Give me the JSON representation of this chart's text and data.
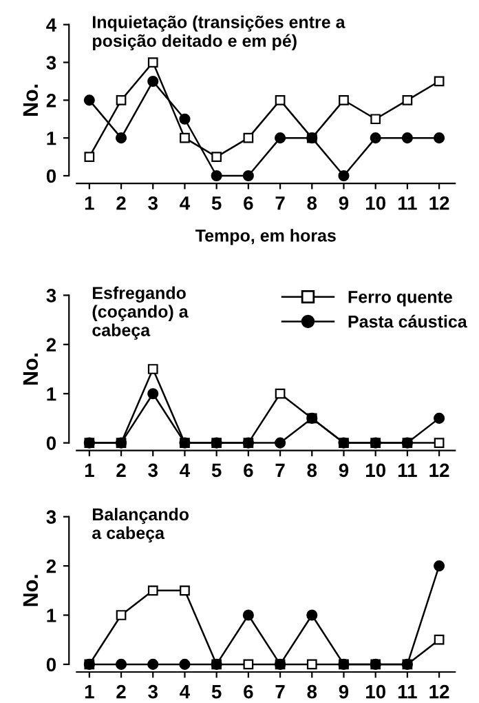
{
  "chart_data": [
    {
      "type": "line",
      "title": "Inquietação (transições entre a\nposição deitado e em pé)",
      "xlabel": "Tempo, em horas",
      "ylabel": "No.",
      "x": [
        1,
        2,
        3,
        4,
        5,
        6,
        7,
        8,
        9,
        10,
        11,
        12
      ],
      "xlim": [
        0.6,
        12.5
      ],
      "xticks": [
        1,
        2,
        3,
        4,
        5,
        6,
        7,
        8,
        9,
        10,
        11,
        12
      ],
      "ylim": [
        0,
        4
      ],
      "yticks": [
        0,
        1,
        2,
        3,
        4
      ],
      "grid": false,
      "legend": false,
      "series": [
        {
          "color": "#000000",
          "marker": "square",
          "values": [
            0.5,
            2,
            3,
            1,
            0.5,
            1,
            2,
            1,
            2,
            1.5,
            2,
            2.5
          ]
        },
        {
          "color": "#000000",
          "marker": "circle",
          "values": [
            2,
            1,
            2.5,
            1.5,
            0,
            0,
            1,
            1,
            0,
            1,
            1,
            1
          ]
        }
      ]
    },
    {
      "type": "line",
      "title": "Esfregando\n(coçando) a\ncabeça",
      "ylabel": "No.",
      "x": [
        1,
        2,
        3,
        4,
        5,
        6,
        7,
        8,
        9,
        10,
        11,
        12
      ],
      "xlim": [
        0.6,
        12.5
      ],
      "xticks": [
        1,
        2,
        3,
        4,
        5,
        6,
        7,
        8,
        9,
        10,
        11,
        12
      ],
      "ylim": [
        0,
        3
      ],
      "yticks": [
        0,
        1,
        2,
        3
      ],
      "grid": false,
      "legend": "top right",
      "series": [
        {
          "name": "Ferro quente",
          "color": "#000000",
          "marker": "square",
          "values": [
            0,
            0,
            1.5,
            0,
            0,
            0,
            1,
            0.5,
            0,
            0,
            0,
            0
          ]
        },
        {
          "name": "Pasta cáustica",
          "color": "#000000",
          "marker": "circle",
          "values": [
            0,
            0,
            1,
            0,
            0,
            0,
            0,
            0.5,
            0,
            0,
            0,
            0.5
          ]
        }
      ]
    },
    {
      "type": "line",
      "title": "Balançando\na cabeça",
      "ylabel": "No.",
      "x": [
        1,
        2,
        3,
        4,
        5,
        6,
        7,
        8,
        9,
        10,
        11,
        12
      ],
      "xlim": [
        0.6,
        12.5
      ],
      "xticks": [
        1,
        2,
        3,
        4,
        5,
        6,
        7,
        8,
        9,
        10,
        11,
        12
      ],
      "ylim": [
        0,
        3
      ],
      "yticks": [
        0,
        1,
        2,
        3
      ],
      "grid": false,
      "legend": false,
      "series": [
        {
          "color": "#000000",
          "marker": "square",
          "values": [
            0,
            1,
            1.5,
            1.5,
            0,
            0,
            0,
            0,
            0,
            0,
            0,
            0.5
          ]
        },
        {
          "color": "#000000",
          "marker": "circle",
          "values": [
            0,
            0,
            0,
            0,
            0,
            1,
            0,
            1,
            0,
            0,
            0,
            2
          ]
        }
      ]
    }
  ]
}
